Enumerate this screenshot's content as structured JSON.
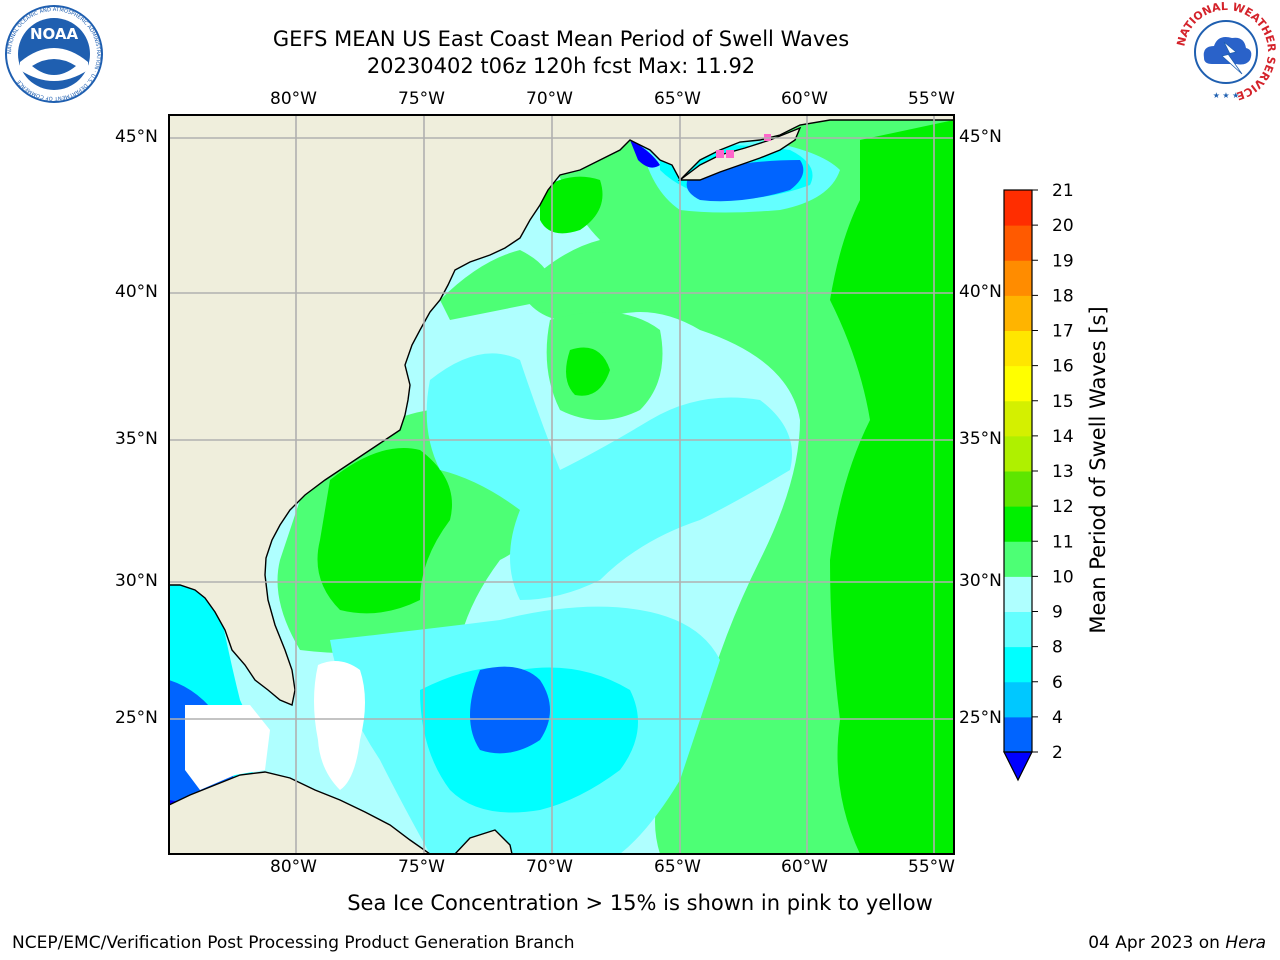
{
  "figure": {
    "title_line1": "GEFS MEAN US East Coast Mean Period of Swell Waves",
    "title_line2": "20230402 t06z 120h fcst   Max: 11.92"
  },
  "logos": {
    "noaa": {
      "text": "NOAA",
      "ring_text": "NATIONAL OCEANIC AND ATMOSPHERIC ADMINISTRATION · U.S. DEPARTMENT OF COMMERCE",
      "color": "#1f5fb0"
    },
    "nws": {
      "ring_text": "NATIONAL WEATHER SERVICE",
      "color": "#d4222a"
    }
  },
  "map": {
    "lon_labels": [
      "80°W",
      "75°W",
      "70°W",
      "65°W",
      "60°W",
      "55°W"
    ],
    "lat_labels": [
      "45°N",
      "40°N",
      "35°N",
      "30°N",
      "25°N"
    ],
    "land_color": "#efeedc",
    "grid_color": "#b0b0b0"
  },
  "colorbar": {
    "label": "Mean Period of Swell Waves [s]",
    "ticks": [
      "2",
      "4",
      "6",
      "8",
      "9",
      "10",
      "11",
      "12",
      "13",
      "14",
      "15",
      "16",
      "17",
      "18",
      "19",
      "20",
      "21"
    ],
    "extend": "min",
    "colors_low_to_high": [
      "#0064ff",
      "#00c8ff",
      "#00ffff",
      "#64ffff",
      "#afffff",
      "#4dff75",
      "#00f000",
      "#5ee600",
      "#aff000",
      "#d4f000",
      "#ffff00",
      "#ffe600",
      "#ffb400",
      "#ff8c00",
      "#ff5a00",
      "#ff2d00",
      "#ff0000"
    ],
    "under_color": "#0000ff"
  },
  "footer": {
    "note": "Sea Ice Concentration > 15% is shown in pink to yellow",
    "left": "NCEP/EMC/Verification Post Processing Product Generation Branch",
    "right_date": "04 Apr 2023 on ",
    "right_host": "Hera"
  }
}
